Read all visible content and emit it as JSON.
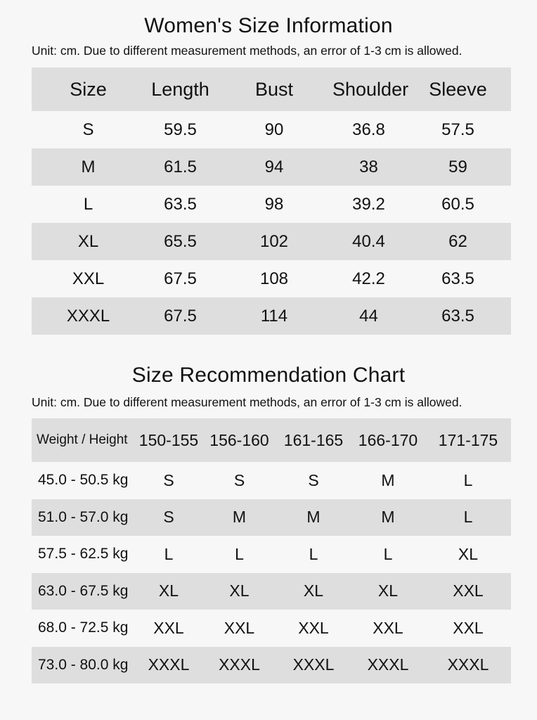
{
  "size_info": {
    "title": "Women's Size Information",
    "unit_note": "Unit: cm. Due to different measurement methods, an error of 1-3 cm is allowed.",
    "columns": [
      "Size",
      "Length",
      "Bust",
      "Shoulder",
      "Sleeve"
    ],
    "rows": [
      [
        "S",
        "59.5",
        "90",
        "36.8",
        "57.5"
      ],
      [
        "M",
        "61.5",
        "94",
        "38",
        "59"
      ],
      [
        "L",
        "63.5",
        "98",
        "39.2",
        "60.5"
      ],
      [
        "XL",
        "65.5",
        "102",
        "40.4",
        "62"
      ],
      [
        "XXL",
        "67.5",
        "108",
        "42.2",
        "63.5"
      ],
      [
        "XXXL",
        "67.5",
        "114",
        "44",
        "63.5"
      ]
    ]
  },
  "recommendation": {
    "title": "Size Recommendation Chart",
    "unit_note": "Unit: cm. Due to different measurement methods, an error of 1-3 cm is allowed.",
    "columns": [
      "Weight / Height",
      "150-155",
      "156-160",
      "161-165",
      "166-170",
      "171-175"
    ],
    "rows": [
      [
        "45.0 - 50.5 kg",
        "S",
        "S",
        "S",
        "M",
        "L"
      ],
      [
        "51.0 - 57.0 kg",
        "S",
        "M",
        "M",
        "M",
        "L"
      ],
      [
        "57.5 - 62.5 kg",
        "L",
        "L",
        "L",
        "L",
        "XL"
      ],
      [
        "63.0 - 67.5 kg",
        "XL",
        "XL",
        "XL",
        "XL",
        "XXL"
      ],
      [
        "68.0 - 72.5 kg",
        "XXL",
        "XXL",
        "XXL",
        "XXL",
        "XXL"
      ],
      [
        "73.0 - 80.0 kg",
        "XXXL",
        "XXXL",
        "XXXL",
        "XXXL",
        "XXXL"
      ]
    ]
  },
  "colors": {
    "background": "#f7f7f7",
    "shade": "#dedede",
    "text": "#111111"
  }
}
